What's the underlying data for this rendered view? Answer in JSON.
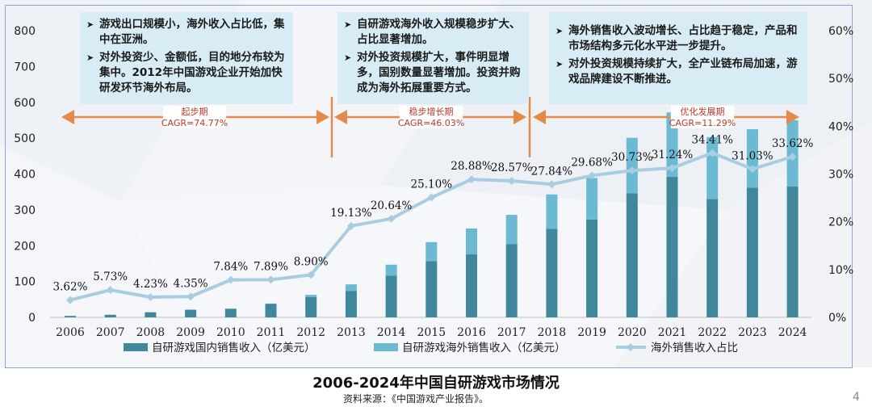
{
  "title": "2006-2024年中国自研游戏市场情况",
  "source": "资料来源：《中国游戏产业报告》。",
  "page_number": "4",
  "notes": [
    {
      "items": [
        "游戏出口规模小，海外收入占比低，集中在亚洲。",
        "对外投资少、金额低，目的地分布较为集中。2012年中国游戏企业开始加快研发环节海外布局。"
      ]
    },
    {
      "items": [
        "自研游戏海外收入规模稳步扩大、占比显著增加。",
        "对外投资规模扩大，事件明显增多，国别数量显著增加。投资并购成为海外拓展重要方式。"
      ]
    },
    {
      "items": [
        "海外销售收入波动增长、占比趋于稳定，产品和市场结构多元化水平进一步提升。",
        "对外投资规模持续扩大，全产业链布局加速，游戏品牌建设不断推进。"
      ]
    }
  ],
  "stages": [
    {
      "name": "起步期",
      "cagr": "CAGR=74.77%"
    },
    {
      "name": "稳步增长期",
      "cagr": "CAGR=46.03%"
    },
    {
      "name": "优化发展期",
      "cagr": "CAGR=11.29%"
    }
  ],
  "colors": {
    "domestic": "#41879c",
    "overseas": "#6cb9d3",
    "ratio_line": "#a9cde0",
    "arrow": "#e48a4a",
    "note_bg": "#d7ecf4"
  },
  "chart_data": {
    "type": "bar",
    "stacked": true,
    "categories": [
      "2006",
      "2007",
      "2008",
      "2009",
      "2010",
      "2011",
      "2012",
      "2013",
      "2014",
      "2015",
      "2016",
      "2017",
      "2018",
      "2019",
      "2020",
      "2021",
      "2022",
      "2023",
      "2024"
    ],
    "series": [
      {
        "name": "自研游戏国内销售收入（亿美元）",
        "type": "bar",
        "axis": "left",
        "values": [
          4,
          7,
          14,
          21,
          24,
          38,
          57,
          74,
          116,
          157,
          176,
          204,
          247,
          273,
          346,
          392,
          330,
          362,
          365
        ]
      },
      {
        "name": "自研游戏海外销售收入（亿美元）",
        "type": "bar",
        "axis": "left",
        "values": [
          0.1,
          0.4,
          0.7,
          0.9,
          0.2,
          0.5,
          5.8,
          18,
          31,
          53,
          72,
          82,
          96,
          116,
          155,
          180,
          173,
          163,
          185
        ]
      },
      {
        "name": "海外销售收入占比",
        "type": "line",
        "axis": "right",
        "values": [
          3.62,
          5.73,
          4.23,
          4.35,
          7.84,
          7.89,
          8.9,
          19.13,
          20.64,
          25.1,
          28.88,
          28.57,
          27.84,
          29.68,
          30.73,
          31.24,
          34.41,
          31.03,
          33.62
        ],
        "labels": [
          "3.62%",
          "5.73%",
          "4.23%",
          "4.35%",
          "7.84%",
          "7.89%",
          "8.90%",
          "19.13%",
          "20.64%",
          "25.10%",
          "28.88%",
          "28.57%",
          "27.84%",
          "29.68%",
          "30.73%",
          "31.24%",
          "34.41%",
          "31.03%",
          "33.62%"
        ]
      }
    ],
    "ylim_left": [
      0,
      800
    ],
    "yticks_left": [
      "0",
      "100",
      "200",
      "300",
      "400",
      "500",
      "600",
      "700",
      "800"
    ],
    "ylim_right": [
      0,
      60
    ],
    "yticks_right": [
      "0%",
      "10%",
      "20%",
      "30%",
      "40%",
      "50%",
      "60%"
    ],
    "legend_position": "bottom",
    "legend": [
      "自研游戏国内销售收入（亿美元）",
      "自研游戏海外销售收入（亿美元）",
      "海外销售收入占比"
    ]
  }
}
